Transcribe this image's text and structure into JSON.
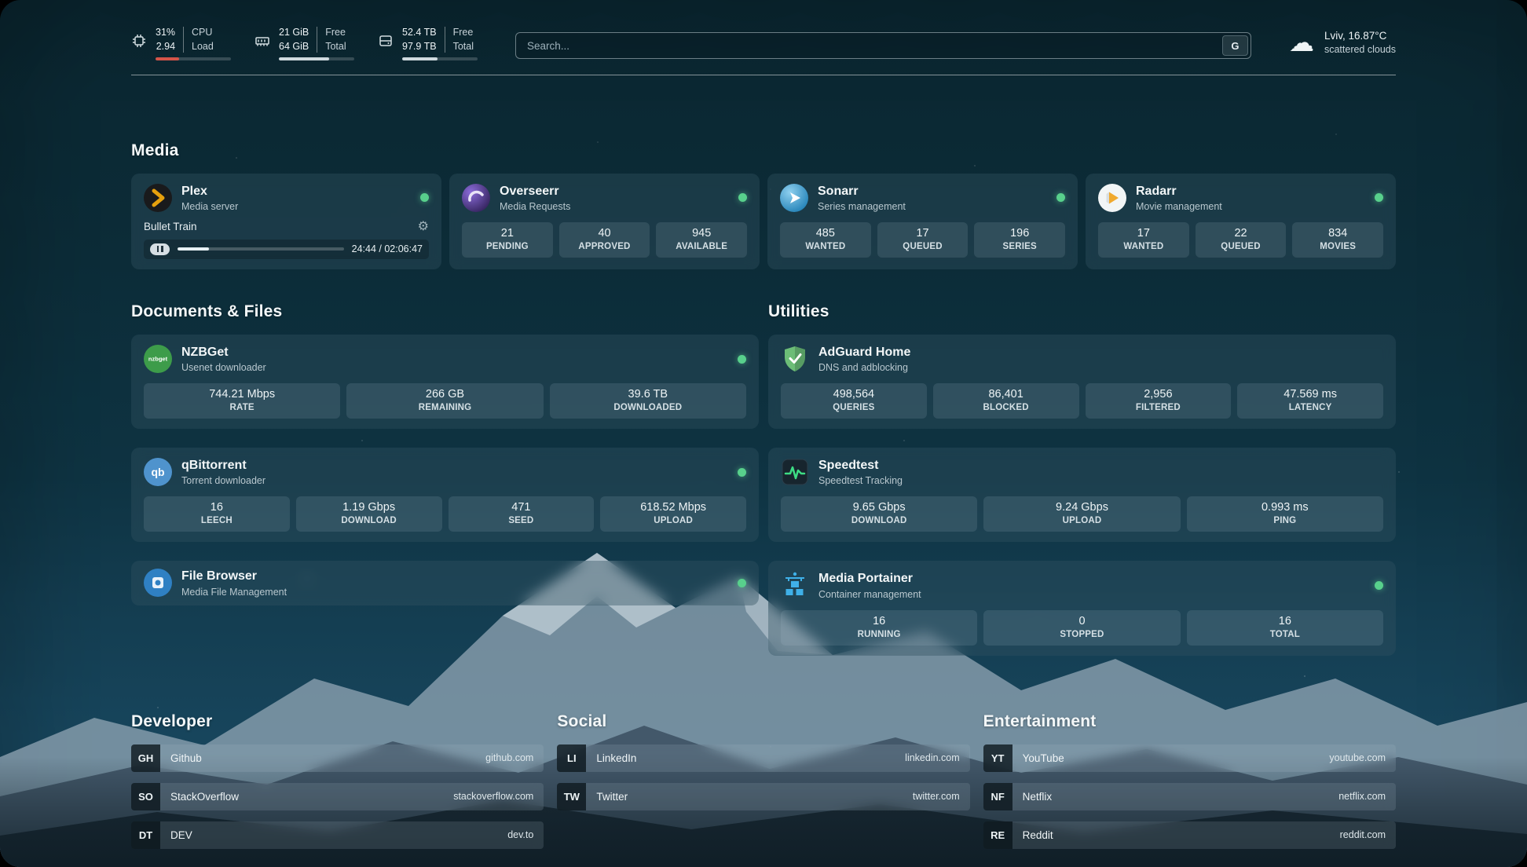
{
  "colors": {
    "status_online": "#58d08c",
    "cpu_bar": "#d35449",
    "plex_amber": "#e5a00d",
    "speedtest_green": "#3ddc84"
  },
  "topbar": {
    "cpu": {
      "icon": "cpu-chip-icon",
      "value_top": "31%",
      "value_bottom": "2.94",
      "label_top": "CPU",
      "label_bottom": "Load",
      "bar_percent": 31
    },
    "memory": {
      "icon": "memory-icon",
      "value_top": "21 GiB",
      "value_bottom": "64 GiB",
      "label_top": "Free",
      "label_bottom": "Total",
      "bar_percent": 67
    },
    "disk": {
      "icon": "disk-icon",
      "value_top": "52.4 TB",
      "value_bottom": "97.9 TB",
      "label_top": "Free",
      "label_bottom": "Total",
      "bar_percent": 47
    },
    "search": {
      "placeholder": "Search...",
      "engine_button": "G"
    },
    "weather": {
      "icon": "cloud-icon",
      "glyph": "☁",
      "location": "Lviv, 16.87°C",
      "condition": "scattered clouds"
    }
  },
  "sections": {
    "media": "Media",
    "documents": "Documents & Files",
    "utilities": "Utilities",
    "developer": "Developer",
    "social": "Social",
    "entertainment": "Entertainment"
  },
  "apps": {
    "plex": {
      "name": "Plex",
      "subtitle": "Media server",
      "now_playing": "Bullet Train",
      "time": "24:44 / 02:06:47",
      "progress_percent": 19,
      "gear_glyph": "⚙"
    },
    "overseerr": {
      "name": "Overseerr",
      "subtitle": "Media Requests",
      "stats": [
        {
          "value": "21",
          "label": "PENDING"
        },
        {
          "value": "40",
          "label": "APPROVED"
        },
        {
          "value": "945",
          "label": "AVAILABLE"
        }
      ]
    },
    "sonarr": {
      "name": "Sonarr",
      "subtitle": "Series management",
      "stats": [
        {
          "value": "485",
          "label": "WANTED"
        },
        {
          "value": "17",
          "label": "QUEUED"
        },
        {
          "value": "196",
          "label": "SERIES"
        }
      ]
    },
    "radarr": {
      "name": "Radarr",
      "subtitle": "Movie management",
      "stats": [
        {
          "value": "17",
          "label": "WANTED"
        },
        {
          "value": "22",
          "label": "QUEUED"
        },
        {
          "value": "834",
          "label": "MOVIES"
        }
      ]
    },
    "nzbget": {
      "name": "NZBGet",
      "subtitle": "Usenet downloader",
      "icon_text": "nzbget",
      "stats": [
        {
          "value": "744.21 Mbps",
          "label": "RATE"
        },
        {
          "value": "266 GB",
          "label": "REMAINING"
        },
        {
          "value": "39.6 TB",
          "label": "DOWNLOADED"
        }
      ]
    },
    "qbittorrent": {
      "name": "qBittorrent",
      "subtitle": "Torrent downloader",
      "icon_text": "qb",
      "stats": [
        {
          "value": "16",
          "label": "LEECH"
        },
        {
          "value": "1.19 Gbps",
          "label": "DOWNLOAD"
        },
        {
          "value": "471",
          "label": "SEED"
        },
        {
          "value": "618.52 Mbps",
          "label": "UPLOAD"
        }
      ]
    },
    "filebrowser": {
      "name": "File Browser",
      "subtitle": "Media File Management"
    },
    "adguard": {
      "name": "AdGuard Home",
      "subtitle": "DNS and adblocking",
      "stats": [
        {
          "value": "498,564",
          "label": "QUERIES"
        },
        {
          "value": "86,401",
          "label": "BLOCKED"
        },
        {
          "value": "2,956",
          "label": "FILTERED"
        },
        {
          "value": "47.569 ms",
          "label": "LATENCY"
        }
      ]
    },
    "speedtest": {
      "name": "Speedtest",
      "subtitle": "Speedtest Tracking",
      "stats": [
        {
          "value": "9.65 Gbps",
          "label": "DOWNLOAD"
        },
        {
          "value": "9.24 Gbps",
          "label": "UPLOAD"
        },
        {
          "value": "0.993 ms",
          "label": "PING"
        }
      ]
    },
    "portainer": {
      "name": "Media Portainer",
      "subtitle": "Container management",
      "stats": [
        {
          "value": "16",
          "label": "RUNNING"
        },
        {
          "value": "0",
          "label": "STOPPED"
        },
        {
          "value": "16",
          "label": "TOTAL"
        }
      ]
    }
  },
  "bookmarks": {
    "developer": [
      {
        "abbr": "GH",
        "name": "Github",
        "url": "github.com"
      },
      {
        "abbr": "SO",
        "name": "StackOverflow",
        "url": "stackoverflow.com"
      },
      {
        "abbr": "DT",
        "name": "DEV",
        "url": "dev.to"
      }
    ],
    "social": [
      {
        "abbr": "LI",
        "name": "LinkedIn",
        "url": "linkedin.com"
      },
      {
        "abbr": "TW",
        "name": "Twitter",
        "url": "twitter.com"
      }
    ],
    "entertainment": [
      {
        "abbr": "YT",
        "name": "YouTube",
        "url": "youtube.com"
      },
      {
        "abbr": "NF",
        "name": "Netflix",
        "url": "netflix.com"
      },
      {
        "abbr": "RE",
        "name": "Reddit",
        "url": "reddit.com"
      }
    ]
  }
}
